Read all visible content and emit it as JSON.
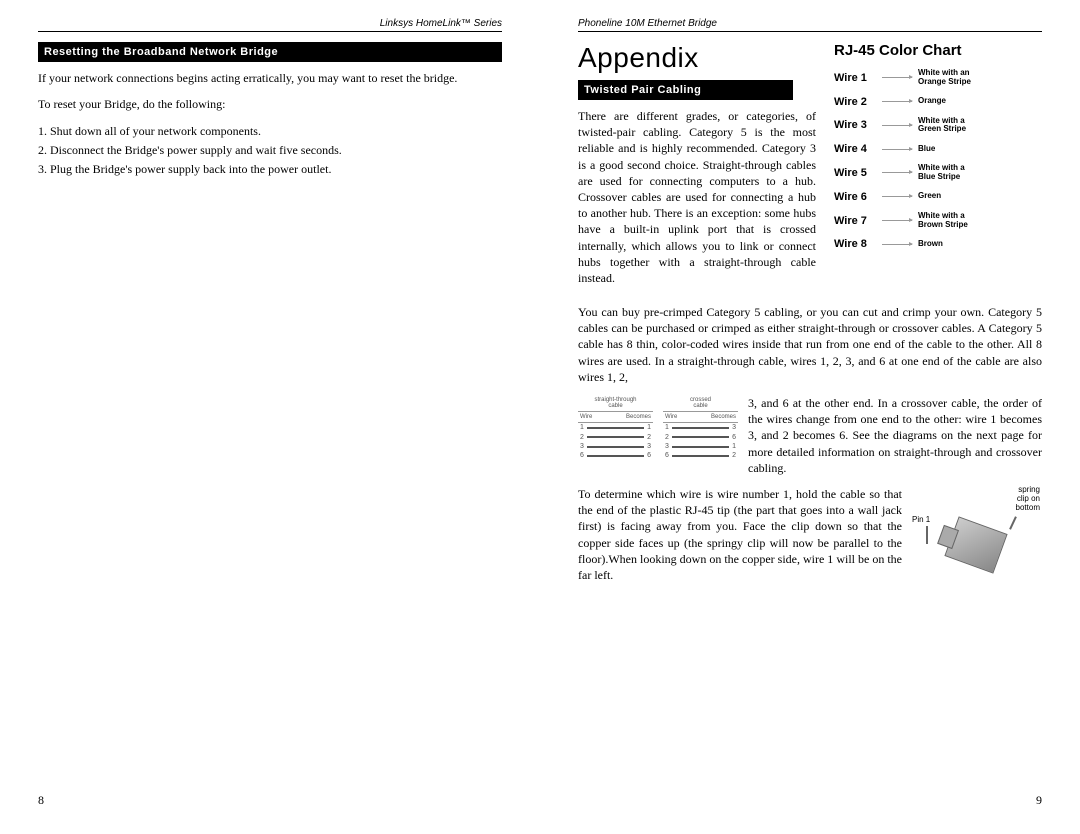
{
  "left": {
    "header": "Linksys HomeLink™ Series",
    "section_title": "Resetting the Broadband Network Bridge",
    "p1": "If your network connections begins acting erratically, you may want to reset the bridge.",
    "p2": "To reset your Bridge, do the following:",
    "steps": [
      "1. Shut down all of your network components.",
      "2. Disconnect the Bridge's power supply and wait five seconds.",
      "3. Plug the Bridge's power supply back into the power outlet."
    ],
    "page_num": "8"
  },
  "right": {
    "header": "Phoneline 10M Ethernet Bridge",
    "appendix": "Appendix",
    "section_title": "Twisted Pair Cabling",
    "p1": "There are different grades, or categories, of twisted-pair cabling. Category 5 is the most reliable and is highly recommended. Category 3 is a good second choice. Straight-through cables are used for connecting computers to a hub. Crossover cables are used for connecting a hub to another hub. There is an exception: some hubs have a built-in uplink port that is crossed internally, which allows you to link or connect hubs together with a straight-through cable instead.",
    "p2": "You can buy pre-crimped Category 5 cabling, or you can cut and crimp your own. Category 5 cables can be purchased or crimped as either straight-through or crossover cables. A Category 5 cable has 8 thin, color-coded wires inside that run from one end of the cable to the other. All 8 wires are used. In a straight-through cable, wires 1, 2, 3, and 6 at one end of the cable are also wires 1, 2,",
    "p3": "3, and 6 at the other end. In a crossover cable, the order of the wires change from one end to the other: wire 1 becomes 3, and 2 becomes 6. See the diagrams on the next page for more detailed information on straight-through and crossover cabling.",
    "p4": "To determine which wire is wire number 1, hold the cable so that the end of the plastic RJ-45 tip (the part that goes into a wall jack first) is facing away from you. Face the clip down so that the copper side faces up (the springy clip will now be parallel to the floor).When looking down on the copper side, wire 1 will be on the far left.",
    "chart_title": "RJ-45 Color Chart",
    "wires": [
      {
        "label": "Wire 1",
        "desc": "White with an\nOrange Stripe"
      },
      {
        "label": "Wire 2",
        "desc": "Orange"
      },
      {
        "label": "Wire 3",
        "desc": "White with a\nGreen Stripe"
      },
      {
        "label": "Wire 4",
        "desc": "Blue"
      },
      {
        "label": "Wire 5",
        "desc": "White with a\nBlue Stripe"
      },
      {
        "label": "Wire 6",
        "desc": "Green"
      },
      {
        "label": "Wire 7",
        "desc": "White with a\nBrown Stripe"
      },
      {
        "label": "Wire 8",
        "desc": "Brown"
      }
    ],
    "mini": {
      "cap1": "straight-through\ncable",
      "cap2": "crossed\ncable",
      "h1": "Wire",
      "h2": "Becomes",
      "t1": [
        [
          "1",
          "1"
        ],
        [
          "2",
          "2"
        ],
        [
          "3",
          "3"
        ],
        [
          "6",
          "6"
        ]
      ],
      "t2": [
        [
          "1",
          "3"
        ],
        [
          "2",
          "6"
        ],
        [
          "3",
          "1"
        ],
        [
          "6",
          "2"
        ]
      ]
    },
    "diag": {
      "spring": "spring\nclip on\nbottom",
      "pin": "Pin 1"
    },
    "page_num": "9"
  }
}
